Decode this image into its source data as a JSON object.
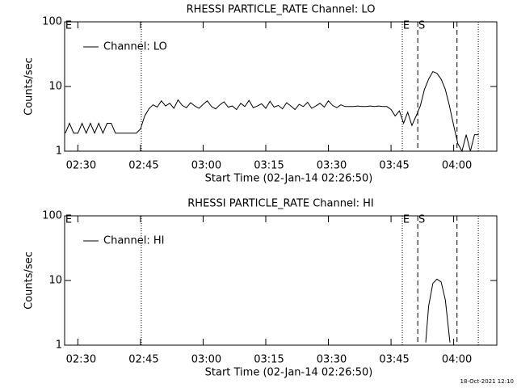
{
  "chart_data": [
    {
      "type": "line",
      "title": "RHESSI PARTICLE_RATE Channel: LO",
      "x_label": "Start Time (02-Jan-14 02:26:50)",
      "y_label": "Counts/sec",
      "log_y": true,
      "xlim": [
        146.83,
        250.33
      ],
      "ylim": [
        1,
        100
      ],
      "xticks": [
        {
          "value": 150,
          "label": "02:30"
        },
        {
          "value": 165,
          "label": "02:45"
        },
        {
          "value": 180,
          "label": "03:00"
        },
        {
          "value": 195,
          "label": "03:15"
        },
        {
          "value": 210,
          "label": "03:30"
        },
        {
          "value": 225,
          "label": "03:45"
        },
        {
          "value": 240,
          "label": "04:00"
        }
      ],
      "yticks": [
        1,
        10,
        100
      ],
      "vlines": [
        {
          "x": 165.2,
          "style": "dotted"
        },
        {
          "x": 227.7,
          "style": "dotted"
        },
        {
          "x": 231.4,
          "style": "dashed"
        },
        {
          "x": 240.8,
          "style": "dashed"
        },
        {
          "x": 245.9,
          "style": "dotted"
        }
      ],
      "annotations": [
        {
          "x": 146.83,
          "text": "E"
        },
        {
          "x": 227.7,
          "text": "E"
        },
        {
          "x": 231.4,
          "text": "S"
        }
      ],
      "series": [
        {
          "name": "Channel: LO",
          "color": "#000000",
          "x": [
            147,
            148,
            149,
            150,
            151,
            152,
            153,
            154,
            155,
            156,
            157,
            158,
            159,
            160,
            161,
            162,
            163,
            164,
            165,
            166,
            167,
            168,
            169,
            170,
            171,
            172,
            173,
            174,
            175,
            176,
            177,
            178,
            179,
            180,
            181,
            182,
            183,
            184,
            185,
            186,
            187,
            188,
            189,
            190,
            191,
            192,
            193,
            194,
            195,
            196,
            197,
            198,
            199,
            200,
            201,
            202,
            203,
            204,
            205,
            206,
            207,
            208,
            209,
            210,
            211,
            212,
            213,
            214,
            215,
            216,
            217,
            218,
            219,
            220,
            221,
            222,
            223,
            224,
            225,
            226,
            227,
            228,
            229,
            230,
            231,
            232,
            233,
            234,
            235,
            236,
            237,
            238,
            239,
            240,
            241,
            242,
            243,
            244,
            245,
            246
          ],
          "values": [
            1.9,
            2.7,
            1.9,
            1.9,
            2.7,
            1.9,
            2.7,
            1.9,
            2.7,
            1.9,
            2.7,
            2.7,
            1.9,
            1.9,
            1.9,
            1.9,
            1.9,
            1.9,
            2.2,
            3.5,
            4.5,
            5.2,
            4.8,
            6,
            5,
            5.5,
            4.6,
            6.2,
            5.1,
            4.7,
            5.6,
            5.0,
            4.6,
            5.3,
            6.0,
            4.9,
            4.5,
            5.2,
            5.8,
            4.8,
            5.0,
            4.4,
            5.5,
            4.9,
            6.1,
            4.7,
            5.0,
            5.4,
            4.6,
            5.9,
            4.8,
            5.1,
            4.5,
            5.6,
            5.0,
            4.4,
            5.3,
            4.9,
            5.7,
            4.6,
            5.0,
            5.5,
            4.8,
            6.0,
            5.1,
            4.7,
            5.2,
            4.9,
            4.9,
            4.9,
            5.0,
            4.9,
            4.9,
            5.0,
            4.9,
            5.0,
            4.9,
            4.9,
            4.4,
            3.5,
            4.2,
            2.7,
            4,
            2.5,
            3.5,
            5,
            9,
            13,
            17,
            16,
            13,
            9,
            5,
            2.5,
            1.3,
            1,
            1.8,
            1,
            1.8,
            1.8
          ]
        }
      ]
    },
    {
      "type": "line",
      "title": "RHESSI PARTICLE_RATE Channel: HI",
      "x_label": "Start Time (02-Jan-14 02:26:50)",
      "y_label": "Counts/sec",
      "log_y": true,
      "xlim": [
        146.83,
        250.33
      ],
      "ylim": [
        1,
        100
      ],
      "xticks": [
        {
          "value": 150,
          "label": "02:30"
        },
        {
          "value": 165,
          "label": "02:45"
        },
        {
          "value": 180,
          "label": "03:00"
        },
        {
          "value": 195,
          "label": "03:15"
        },
        {
          "value": 210,
          "label": "03:30"
        },
        {
          "value": 225,
          "label": "03:45"
        },
        {
          "value": 240,
          "label": "04:00"
        }
      ],
      "yticks": [
        1,
        10,
        100
      ],
      "vlines": [
        {
          "x": 165.2,
          "style": "dotted"
        },
        {
          "x": 227.7,
          "style": "dotted"
        },
        {
          "x": 231.4,
          "style": "dashed"
        },
        {
          "x": 240.8,
          "style": "dashed"
        },
        {
          "x": 245.9,
          "style": "dotted"
        }
      ],
      "annotations": [
        {
          "x": 146.83,
          "text": "E"
        },
        {
          "x": 227.7,
          "text": "E"
        },
        {
          "x": 231.4,
          "text": "S"
        }
      ],
      "series": [
        {
          "name": "Channel: HI",
          "color": "#000000",
          "x": [
            233.3,
            234,
            235,
            236,
            237,
            238,
            239.1
          ],
          "values": [
            1.1,
            4,
            9,
            10.5,
            9.5,
            5,
            1.1
          ]
        }
      ]
    }
  ],
  "footer": "18-Oct-2021 12:10"
}
